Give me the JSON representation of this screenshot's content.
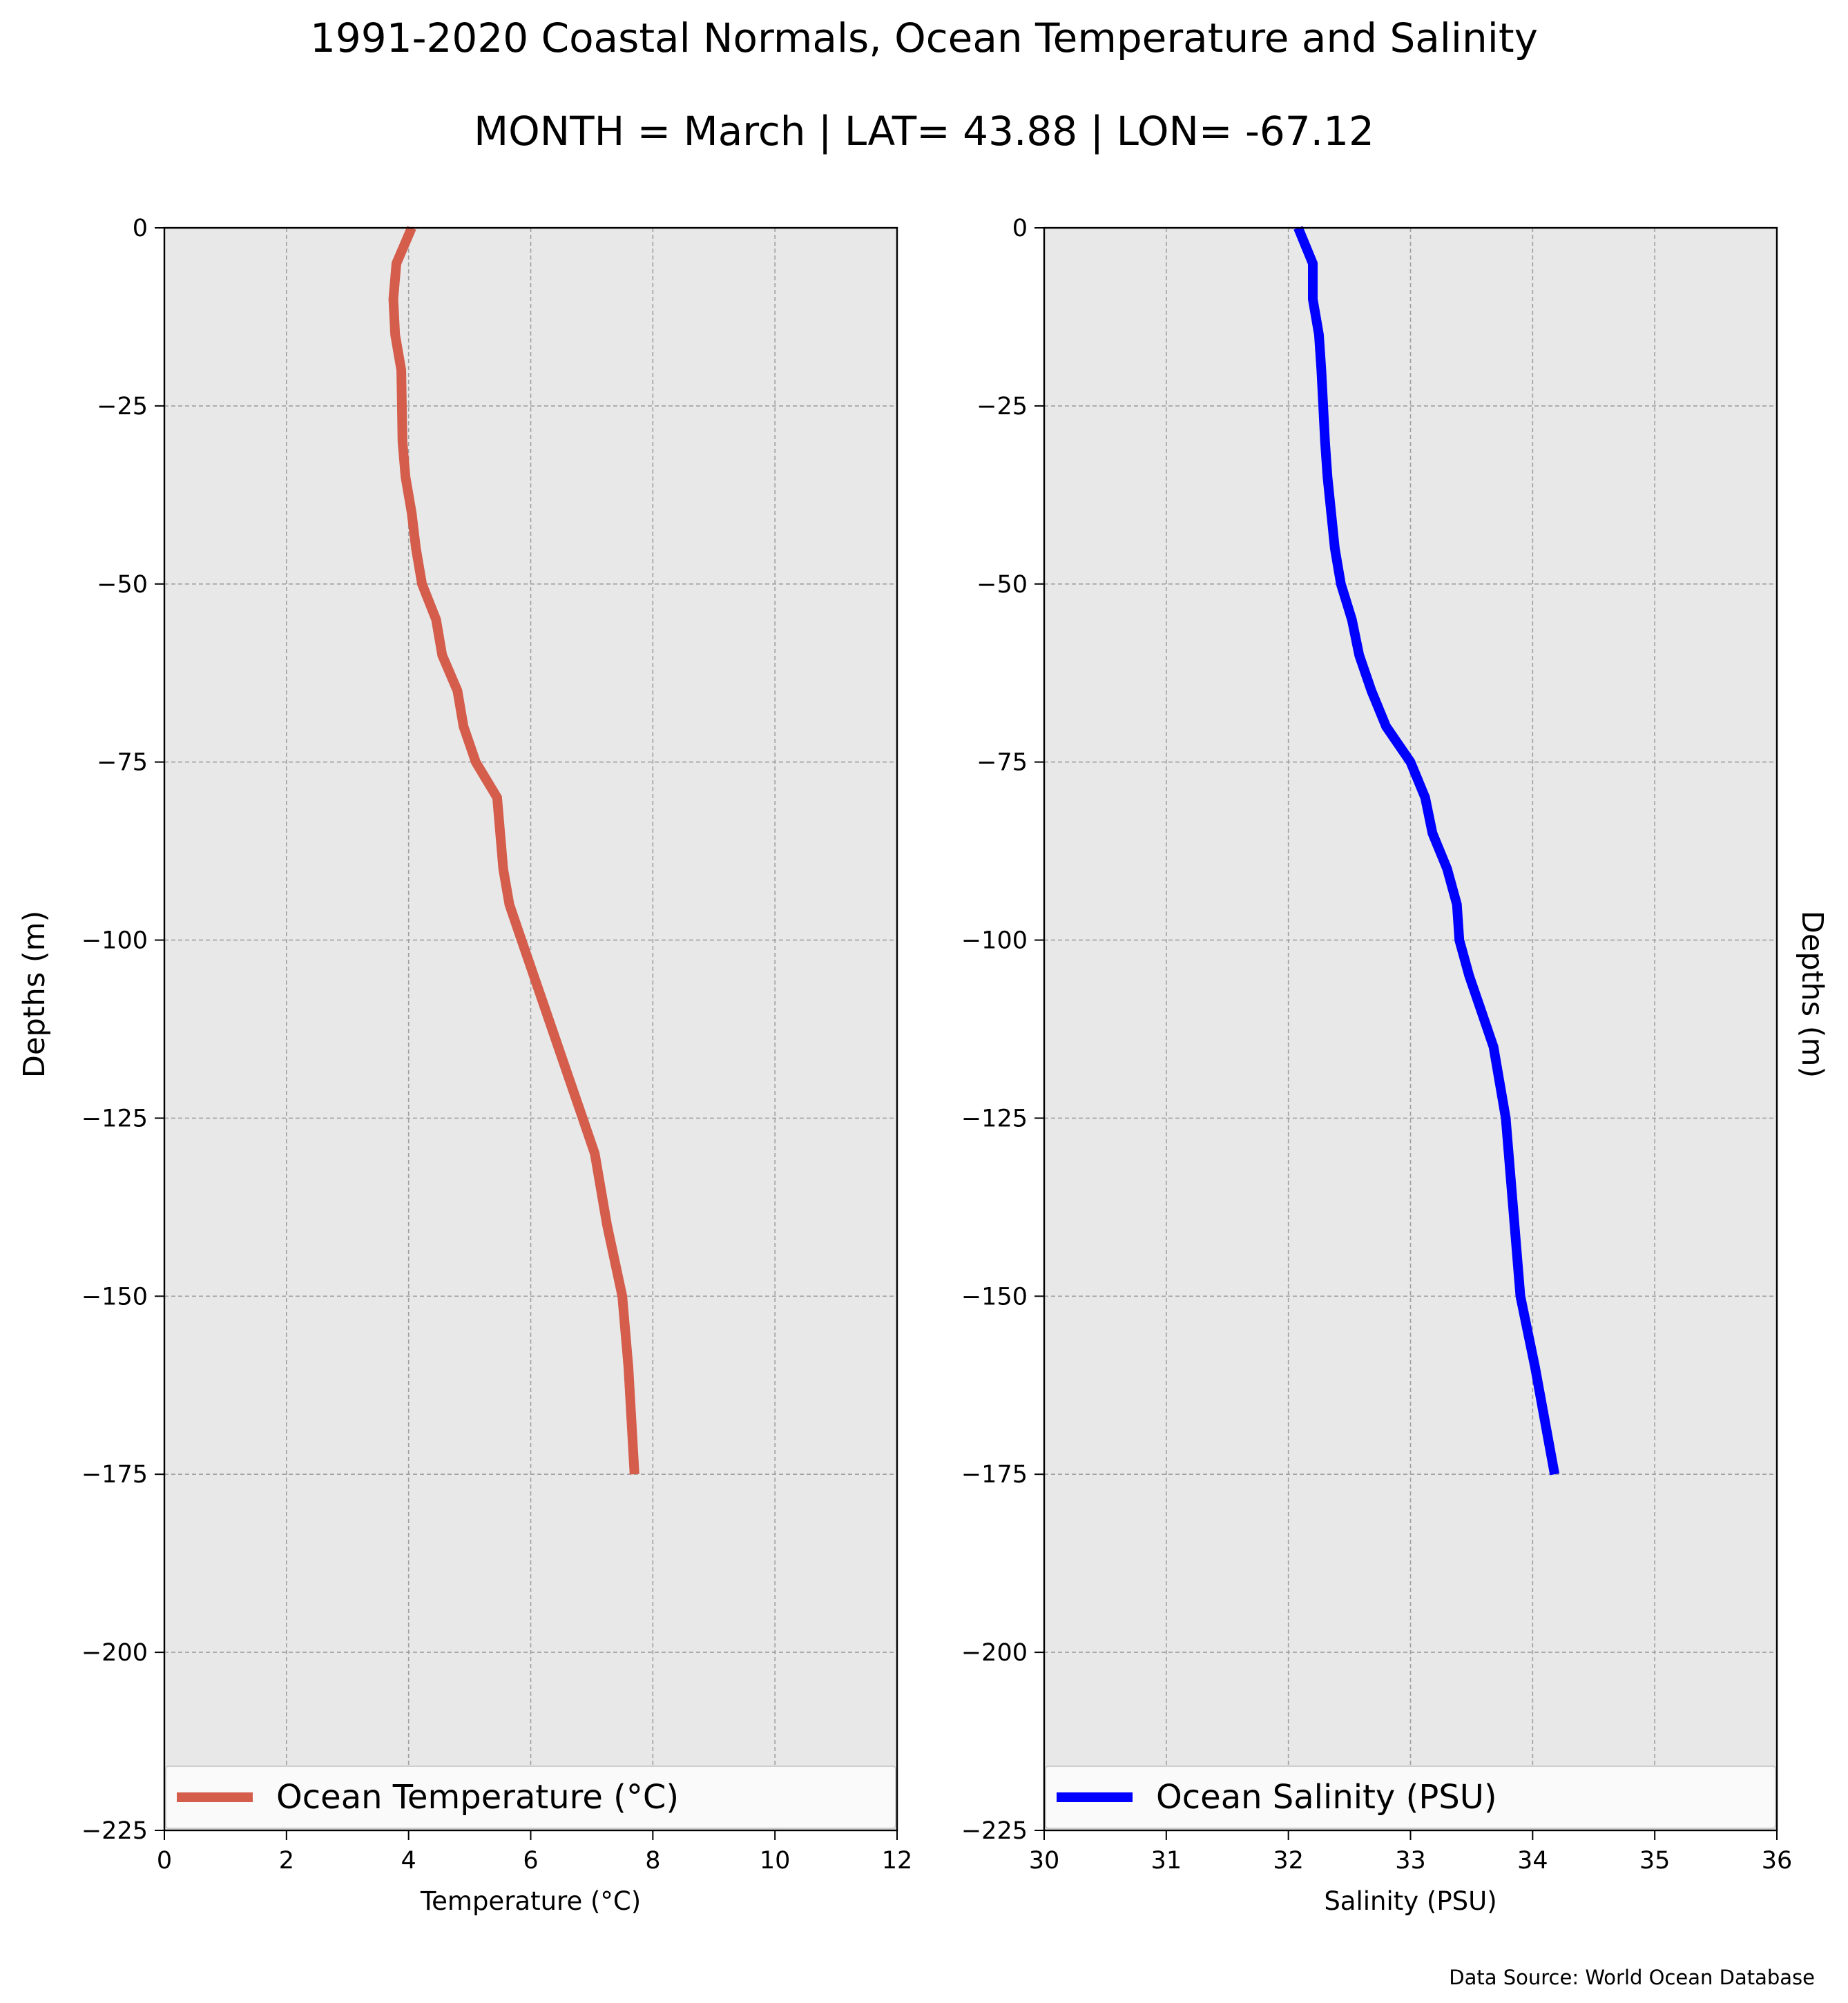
{
  "figure": {
    "title": "1991-2020 Coastal Normals, Ocean Temperature and Salinity",
    "subtitle": "MONTH = March | LAT= 43.88 | LON= -67.12",
    "source_note": "Data Source: World Ocean Database",
    "colors": {
      "background": "#e8e8e8",
      "grid": "#a0a0a0",
      "temperature": "#d45d4c",
      "salinity": "#0000ff"
    }
  },
  "chart_data": [
    {
      "type": "line",
      "xlabel": "Temperature (°C)",
      "ylabel": "Depths (m)",
      "xlim": [
        0,
        12
      ],
      "ylim": [
        -225,
        0
      ],
      "xticks": [
        0,
        2,
        4,
        6,
        8,
        10,
        12
      ],
      "yticks": [
        0,
        -25,
        -50,
        -75,
        -100,
        -125,
        -150,
        -175,
        -200,
        -225
      ],
      "grid": true,
      "legend_position": "bottom",
      "series": [
        {
          "name": "Ocean Temperature (°C)",
          "color": "#d45d4c",
          "x": [
            4.05,
            3.8,
            3.75,
            3.78,
            3.88,
            3.9,
            3.95,
            4.05,
            4.12,
            4.22,
            4.45,
            4.55,
            4.8,
            4.9,
            5.1,
            5.45,
            5.5,
            5.55,
            5.65,
            5.85,
            6.05,
            6.25,
            6.45,
            6.65,
            6.85,
            7.05,
            7.25,
            7.5,
            7.6,
            7.7
          ],
          "y": [
            0,
            -5,
            -10,
            -15,
            -20,
            -30,
            -35,
            -40,
            -45,
            -50,
            -55,
            -60,
            -65,
            -70,
            -75,
            -80,
            -85,
            -90,
            -95,
            -100,
            -105,
            -110,
            -115,
            -120,
            -125,
            -130,
            -140,
            -150,
            -160,
            -175
          ]
        }
      ]
    },
    {
      "type": "line",
      "xlabel": "Salinity (PSU)",
      "ylabel": "Depths (m)",
      "xlim": [
        30,
        36
      ],
      "ylim": [
        -225,
        0
      ],
      "xticks": [
        30,
        31,
        32,
        33,
        34,
        35,
        36
      ],
      "yticks": [
        0,
        -25,
        -50,
        -75,
        -100,
        -125,
        -150,
        -175,
        -200,
        -225
      ],
      "grid": true,
      "legend_position": "bottom",
      "series": [
        {
          "name": "Ocean Salinity (PSU)",
          "color": "#0000ff",
          "x": [
            32.08,
            32.2,
            32.2,
            32.25,
            32.27,
            32.3,
            32.32,
            32.35,
            32.38,
            32.43,
            32.52,
            32.58,
            32.68,
            32.8,
            33.0,
            33.12,
            33.18,
            33.3,
            33.38,
            33.4,
            33.48,
            33.58,
            33.68,
            33.78,
            33.9,
            34.02,
            34.18
          ],
          "y": [
            0,
            -5,
            -10,
            -15,
            -20,
            -30,
            -35,
            -40,
            -45,
            -50,
            -55,
            -60,
            -65,
            -70,
            -75,
            -80,
            -85,
            -90,
            -95,
            -100,
            -105,
            -110,
            -115,
            -125,
            -150,
            -160,
            -175
          ]
        }
      ]
    }
  ]
}
